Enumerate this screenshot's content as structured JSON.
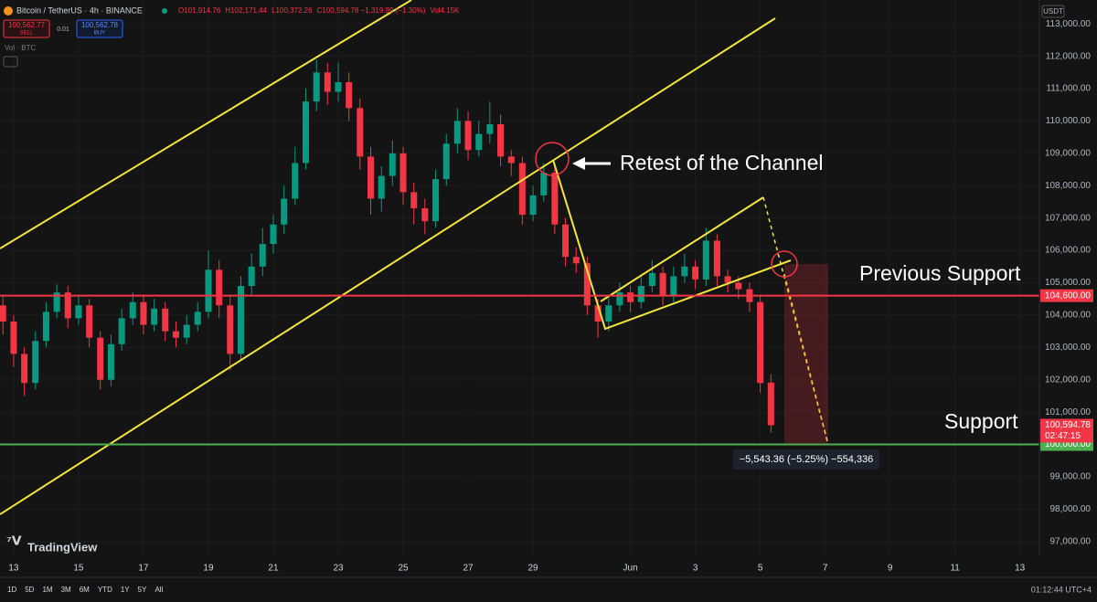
{
  "ui": {
    "symbol": "Bitcoin / TetherUS · 4h · BINANCE",
    "ohlc": [
      "O101,914.76",
      "H102,171.44",
      "L100,372.26",
      "C100,594.78 −1,319.99 (−1.30%)"
    ],
    "volume": "Vol4.15K",
    "sell_price": "100,562.77",
    "sell": "SELL",
    "spread": "0.01",
    "buy_price": "100,562.78",
    "buy": "BUY",
    "vol_indicator": "Vol · BTC",
    "currency": "USDT",
    "logo": "TradingView",
    "ranges": [
      "1D",
      "5D",
      "1M",
      "3M",
      "6M",
      "YTD",
      "1Y",
      "5Y",
      "All"
    ],
    "clock": "01:12:44 UTC+4"
  },
  "chart_data": {
    "type": "candlestick",
    "x": [
      12.67,
      13,
      13.33,
      13.67,
      14,
      14.33,
      14.67,
      15,
      15.33,
      15.67,
      16,
      16.33,
      16.67,
      17,
      17.33,
      17.67,
      18,
      18.33,
      18.67,
      19,
      19.33,
      19.67,
      20,
      20.33,
      20.67,
      21,
      21.33,
      21.67,
      22,
      22.33,
      22.67,
      23,
      23.33,
      23.67,
      24,
      24.33,
      24.67,
      25,
      25.33,
      25.67,
      26,
      26.33,
      26.67,
      27,
      27.33,
      27.67,
      28,
      28.33,
      28.67,
      29,
      29.33,
      29.67,
      30,
      30.33,
      30.67,
      31,
      31.33,
      31.67,
      32,
      32.33,
      32.67,
      33,
      33.33,
      33.67,
      34,
      34.33,
      34.67,
      35,
      35.33,
      35.67,
      36,
      36.33
    ],
    "open": [
      104300,
      103800,
      102800,
      101900,
      103200,
      104100,
      104700,
      103900,
      104300,
      103300,
      102000,
      103100,
      103900,
      104400,
      103700,
      104200,
      103500,
      103300,
      103700,
      104100,
      105400,
      104300,
      102800,
      104900,
      105500,
      106200,
      106800,
      107600,
      108700,
      110600,
      111500,
      110900,
      111200,
      110400,
      108900,
      107600,
      108300,
      109000,
      107800,
      107300,
      106900,
      108200,
      109300,
      110000,
      109100,
      109600,
      109900,
      108900,
      108700,
      107100,
      107700,
      108400,
      106800,
      105800,
      105600,
      104300,
      103800,
      104300,
      104700,
      104400,
      104900,
      105300,
      104600,
      105200,
      105500,
      105100,
      106300,
      105200,
      105000,
      104800,
      104400,
      101914.76
    ],
    "high": [
      104600,
      104000,
      103000,
      103500,
      104400,
      104950,
      104900,
      104600,
      104500,
      103500,
      103400,
      104200,
      104700,
      104600,
      104500,
      104400,
      103800,
      104000,
      104400,
      106000,
      105700,
      104600,
      105200,
      105900,
      106700,
      107100,
      108000,
      109200,
      111000,
      111900,
      111800,
      111800,
      111500,
      110700,
      109200,
      108600,
      109400,
      109200,
      108100,
      107600,
      108500,
      109600,
      110400,
      110300,
      110000,
      110600,
      110200,
      109100,
      108900,
      108000,
      108700,
      108600,
      107000,
      106100,
      105800,
      104500,
      104600,
      105000,
      104900,
      105200,
      105700,
      105500,
      105500,
      105900,
      105700,
      106700,
      106500,
      105400,
      105200,
      105000,
      104600,
      102171.44
    ],
    "low": [
      103400,
      102400,
      101500,
      101700,
      103000,
      103900,
      103600,
      103700,
      103000,
      101700,
      101800,
      102900,
      103700,
      103400,
      103500,
      103200,
      103000,
      103100,
      103500,
      103900,
      103900,
      102300,
      102600,
      104600,
      105200,
      105900,
      106500,
      107400,
      108500,
      110300,
      110500,
      110600,
      110000,
      108500,
      107100,
      107200,
      108000,
      107400,
      106800,
      106500,
      106700,
      108000,
      109000,
      108800,
      108900,
      109300,
      108600,
      108300,
      106800,
      106900,
      107500,
      106500,
      105500,
      105300,
      104000,
      103300,
      103500,
      104100,
      104100,
      104200,
      104700,
      104300,
      104400,
      105000,
      104800,
      104900,
      104900,
      104700,
      104500,
      104100,
      101600,
      100372.26
    ],
    "close": [
      103800,
      102800,
      101900,
      103200,
      104100,
      104700,
      103900,
      104300,
      103300,
      102000,
      103100,
      103900,
      104400,
      103700,
      104200,
      103500,
      103300,
      103700,
      104100,
      105400,
      104300,
      102800,
      104900,
      105500,
      106200,
      106800,
      107600,
      108700,
      110600,
      111500,
      110900,
      111200,
      110400,
      108900,
      107600,
      108300,
      109000,
      107800,
      107300,
      106900,
      108200,
      109300,
      110000,
      109100,
      109600,
      109900,
      108900,
      108700,
      107100,
      107700,
      108400,
      106800,
      105800,
      105600,
      104300,
      103800,
      104300,
      104700,
      104400,
      104900,
      105300,
      104600,
      105200,
      105500,
      105100,
      106300,
      105200,
      105000,
      104800,
      104400,
      101900,
      100594.78
    ],
    "up_color": "#089981",
    "down_color": "#f23645",
    "xlim": [
      12.58,
      44.6
    ],
    "ylim": [
      96570,
      113740
    ],
    "xticks": [
      13,
      15,
      17,
      19,
      21,
      23,
      25,
      27,
      29,
      {
        "value": 32,
        "label": "Jun"
      },
      {
        "value": 34,
        "label": "3"
      },
      {
        "value": 36,
        "label": "5"
      },
      {
        "value": 38,
        "label": "7"
      },
      {
        "value": 40,
        "label": "9"
      },
      {
        "value": 42,
        "label": "11"
      },
      {
        "value": 44,
        "label": "13"
      }
    ],
    "yticks": [
      {
        "value": 97000,
        "label": "97,000.00"
      },
      {
        "value": 98000,
        "label": "98,000.00"
      },
      {
        "value": 99000,
        "label": "99,000.00"
      },
      {
        "value": 100000,
        "label": "100,000.00"
      },
      {
        "value": 101000,
        "label": "101,000.00"
      },
      {
        "value": 102000,
        "label": "102,000.00"
      },
      {
        "value": 103000,
        "label": "103,000.00"
      },
      {
        "value": 104000,
        "label": "104,000.00"
      },
      {
        "value": 105000,
        "label": "105,000.00"
      },
      {
        "value": 106000,
        "label": "106,000.00"
      },
      {
        "value": 107000,
        "label": "107,000.00"
      },
      {
        "value": 108000,
        "label": "108,000.00"
      },
      {
        "value": 109000,
        "label": "109,000.00"
      },
      {
        "value": 110000,
        "label": "110,000.00"
      },
      {
        "value": 111000,
        "label": "111,000.00"
      },
      {
        "value": 112000,
        "label": "112,000.00"
      },
      {
        "value": 113000,
        "label": "113,000.00"
      }
    ],
    "hlines": [
      {
        "value": 104600,
        "label": "104,600.00",
        "color": "#f23645"
      },
      {
        "value": 100000,
        "label": "100,000.00",
        "color": "#4caf50"
      }
    ],
    "current_price": {
      "value": 100594.78,
      "label": "100,594.78",
      "countdown": "02:47:15",
      "color": "#f23645"
    },
    "annotations": [
      "Retest of the Channel",
      "Previous Support",
      "Support"
    ],
    "measurement": "−5,543.36 (−5.25%) −554,336"
  }
}
